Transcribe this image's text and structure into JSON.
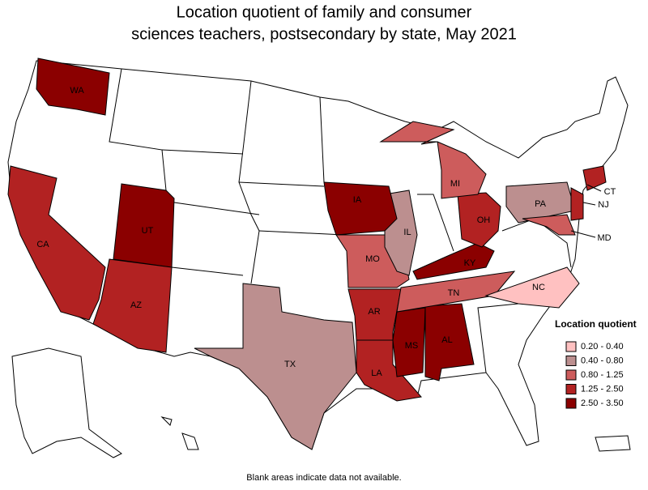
{
  "title": [
    "Location quotient of family and consumer",
    "sciences teachers, postsecondary by state, May 2021"
  ],
  "legend": {
    "title": "Location quotient",
    "items": [
      {
        "label": "0.20 - 0.40",
        "color": "#ffc1c1"
      },
      {
        "label": "0.40 - 0.80",
        "color": "#bc8f8f"
      },
      {
        "label": "0.80 - 1.25",
        "color": "#cd5c5c"
      },
      {
        "label": "1.25 - 2.50",
        "color": "#b22222"
      },
      {
        "label": "2.50 - 3.50",
        "color": "#8b0000"
      }
    ]
  },
  "states": [
    {
      "label": "WA",
      "color": "#8b0000"
    },
    {
      "label": "CA",
      "color": "#b22222"
    },
    {
      "label": "UT",
      "color": "#8b0000"
    },
    {
      "label": "AZ",
      "color": "#b22222"
    },
    {
      "label": "TX",
      "color": "#bc8f8f"
    },
    {
      "label": "MO",
      "color": "#cd5c5c"
    },
    {
      "label": "AR",
      "color": "#b22222"
    },
    {
      "label": "LA",
      "color": "#b22222"
    },
    {
      "label": "MS",
      "color": "#8b0000"
    },
    {
      "label": "AL",
      "color": "#8b0000"
    },
    {
      "label": "TN",
      "color": "#cd5c5c"
    },
    {
      "label": "KY",
      "color": "#8b0000"
    },
    {
      "label": "OH",
      "color": "#b22222"
    },
    {
      "label": "MI",
      "color": "#cd5c5c"
    },
    {
      "label": "IL",
      "color": "#bc8f8f"
    },
    {
      "label": "IA",
      "color": "#8b0000"
    },
    {
      "label": "PA",
      "color": "#bc8f8f"
    },
    {
      "label": "NJ",
      "color": "#b22222"
    },
    {
      "label": "CT",
      "color": "#b22222"
    },
    {
      "label": "MD",
      "color": "#cd5c5c"
    },
    {
      "label": "NC",
      "color": "#ffc1c1"
    }
  ],
  "footnote": "Blank areas indicate data not available."
}
